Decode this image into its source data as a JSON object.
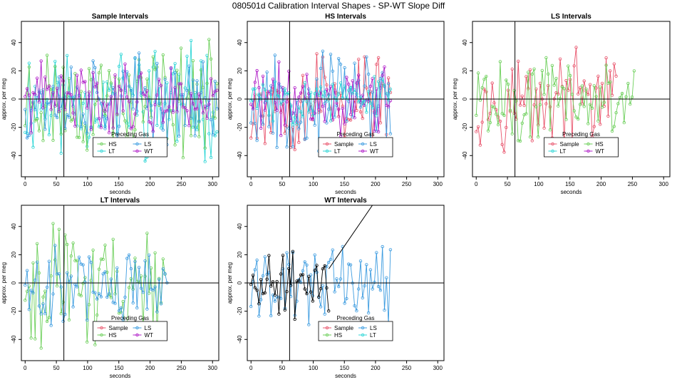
{
  "figure": {
    "title": "080501d   Calibration Interval Shapes - SP-WT Slope Diff"
  },
  "colors": {
    "Sample": "#e8536b",
    "HS": "#6ccf5a",
    "LS": "#3d9ce0",
    "LT": "#2ed6d6",
    "WT": "#b01fc8",
    "Black": "#000000"
  },
  "chart_data": [
    {
      "type": "line",
      "title": "Sample Intervals",
      "xlabel": "seconds",
      "ylabel": "approx. per meg",
      "xlim": [
        -6,
        310
      ],
      "ylim": [
        -55,
        55
      ],
      "xticks": [
        0,
        50,
        100,
        150,
        200,
        250,
        300
      ],
      "yticks": [
        -40,
        -20,
        0,
        20,
        40
      ],
      "vline": 62,
      "hline": 0,
      "legend": {
        "title": "Preceding Gas",
        "position": "bottom-center",
        "ncol": 2,
        "entries": [
          "HS",
          "LS",
          "LT",
          "WT"
        ]
      },
      "series": [
        {
          "name": "LT",
          "color_key": "LT",
          "x_end": 310,
          "step": 3.2,
          "amplitude": 30,
          "seed": 11
        },
        {
          "name": "HS",
          "color_key": "HS",
          "x_end": 310,
          "step": 3.2,
          "amplitude": 28,
          "seed": 23
        },
        {
          "name": "LS",
          "color_key": "LS",
          "x_end": 310,
          "step": 3.2,
          "amplitude": 22,
          "seed": 37
        },
        {
          "name": "WT",
          "color_key": "WT",
          "x_end": 310,
          "step": 3.2,
          "amplitude": 18,
          "seed": 41
        }
      ]
    },
    {
      "type": "line",
      "title": "HS Intervals",
      "xlabel": "seconds",
      "ylabel": "approx. per meg",
      "xlim": [
        -6,
        310
      ],
      "ylim": [
        -55,
        55
      ],
      "xticks": [
        0,
        50,
        100,
        150,
        200,
        250,
        300
      ],
      "yticks": [
        -40,
        -20,
        0,
        20,
        40
      ],
      "vline": 62,
      "hline": 0,
      "legend": {
        "title": "Preceding Gas",
        "position": "bottom-center",
        "ncol": 2,
        "entries": [
          "Sample",
          "LS",
          "LT",
          "WT"
        ]
      },
      "series": [
        {
          "name": "Sample",
          "color_key": "Sample",
          "x_end": 225,
          "step": 3.2,
          "amplitude": 28,
          "seed": 53
        },
        {
          "name": "LS",
          "color_key": "LS",
          "x_end": 225,
          "step": 3.2,
          "amplitude": 26,
          "seed": 67
        },
        {
          "name": "WT",
          "color_key": "WT",
          "x_end": 225,
          "step": 3.2,
          "amplitude": 18,
          "seed": 71
        },
        {
          "name": "LT",
          "color_key": "LT",
          "x_end": 225,
          "step": 3.2,
          "amplitude": 12,
          "seed": 83
        }
      ]
    },
    {
      "type": "line",
      "title": "LS Intervals",
      "xlabel": "seconds",
      "ylabel": "approx. per meg",
      "xlim": [
        -6,
        310
      ],
      "ylim": [
        -55,
        55
      ],
      "xticks": [
        0,
        50,
        100,
        150,
        200,
        250,
        300
      ],
      "yticks": [
        -40,
        -20,
        0,
        20,
        40
      ],
      "vline": 62,
      "hline": 0,
      "legend": {
        "title": "Preceding Gas",
        "position": "bottom-center",
        "ncol": 2,
        "entries": [
          "Sample",
          "HS",
          "LT",
          "WT"
        ]
      },
      "series": [
        {
          "name": "Sample",
          "color_key": "Sample",
          "x_end": 225,
          "step": 3.2,
          "amplitude": 24,
          "seed": 97
        },
        {
          "name": "HS",
          "color_key": "HS",
          "x_end": 255,
          "step": 3.2,
          "amplitude": 22,
          "seed": 101
        }
      ]
    },
    {
      "type": "line",
      "title": "LT Intervals",
      "xlabel": "seconds",
      "ylabel": "approx. per meg",
      "xlim": [
        -6,
        310
      ],
      "ylim": [
        -55,
        55
      ],
      "xticks": [
        0,
        50,
        100,
        150,
        200,
        250,
        300
      ],
      "yticks": [
        -40,
        -20,
        0,
        20,
        40
      ],
      "vline": 62,
      "hline": 0,
      "legend": {
        "title": "Preceding Gas",
        "position": "bottom-center",
        "ncol": 2,
        "entries": [
          "Sample",
          "LS",
          "HS",
          "WT"
        ]
      },
      "series": [
        {
          "name": "HS",
          "color_key": "HS",
          "x_end": 225,
          "step": 3.2,
          "amplitude": 30,
          "seed": 113
        },
        {
          "name": "LS",
          "color_key": "LS",
          "x_end": 230,
          "step": 3.2,
          "amplitude": 22,
          "seed": 127
        }
      ]
    },
    {
      "type": "line",
      "title": "WT Intervals",
      "xlabel": "seconds",
      "ylabel": "approx. per meg",
      "xlim": [
        -6,
        310
      ],
      "ylim": [
        -55,
        55
      ],
      "xticks": [
        0,
        50,
        100,
        150,
        200,
        250,
        300
      ],
      "yticks": [
        -40,
        -20,
        0,
        20,
        40
      ],
      "vline": 62,
      "hline": 0,
      "legend": {
        "title": "Preceding Gas",
        "position": "bottom-center",
        "ncol": 2,
        "entries": [
          "Sample",
          "LS",
          "HS",
          "LT"
        ]
      },
      "series": [
        {
          "name": "LS",
          "color_key": "LS",
          "x_end": 225,
          "step": 3.2,
          "amplitude": 20,
          "seed": 131
        },
        {
          "name": "Black",
          "color_key": "Black",
          "x_end": 125,
          "step": 3.2,
          "amplitude": 18,
          "seed": 149
        }
      ],
      "annotation_line": {
        "x": [
          125,
          195
        ],
        "y": [
          10,
          55
        ]
      }
    }
  ]
}
